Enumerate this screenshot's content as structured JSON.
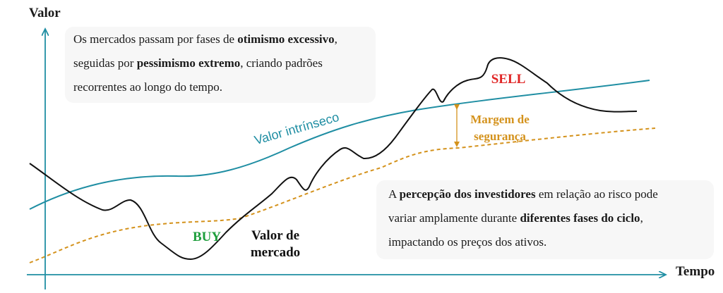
{
  "axes": {
    "y_label": "Valor",
    "x_label": "Tempo"
  },
  "note_top": {
    "line1": {
      "pre": "Os mercados passam por fases de ",
      "bold": "otimismo excessivo",
      "post": ","
    },
    "line2": {
      "pre": "seguidas por ",
      "bold": "pessimismo extremo",
      "post": ", criando padrões"
    },
    "line3": {
      "text": "recorrentes ao longo do tempo."
    }
  },
  "note_bottom": {
    "line1": {
      "pre": "A ",
      "bold": "percepção dos investidores",
      "post": " em relação ao risco pode"
    },
    "line2": {
      "pre": "variar amplamente durante ",
      "bold": "diferentes fases do ciclo",
      "post": ","
    },
    "line3": {
      "text": "impactando os preços dos ativos."
    }
  },
  "labels": {
    "intrinsic_value": "Valor intrínseco",
    "margin_of_safety": {
      "line1": "Margem de",
      "line2": "segurança"
    },
    "market_value": {
      "line1": "Valor de",
      "line2": "mercado"
    },
    "buy": "BUY",
    "sell": "SELL"
  },
  "colors": {
    "axis": "#1f8ea3",
    "intrinsic": "#1f8ea3",
    "market": "#111111",
    "margin": "#d4921c",
    "buy": "#1e9e3c",
    "sell": "#e02424",
    "note_bg": "#f7f7f7"
  }
}
